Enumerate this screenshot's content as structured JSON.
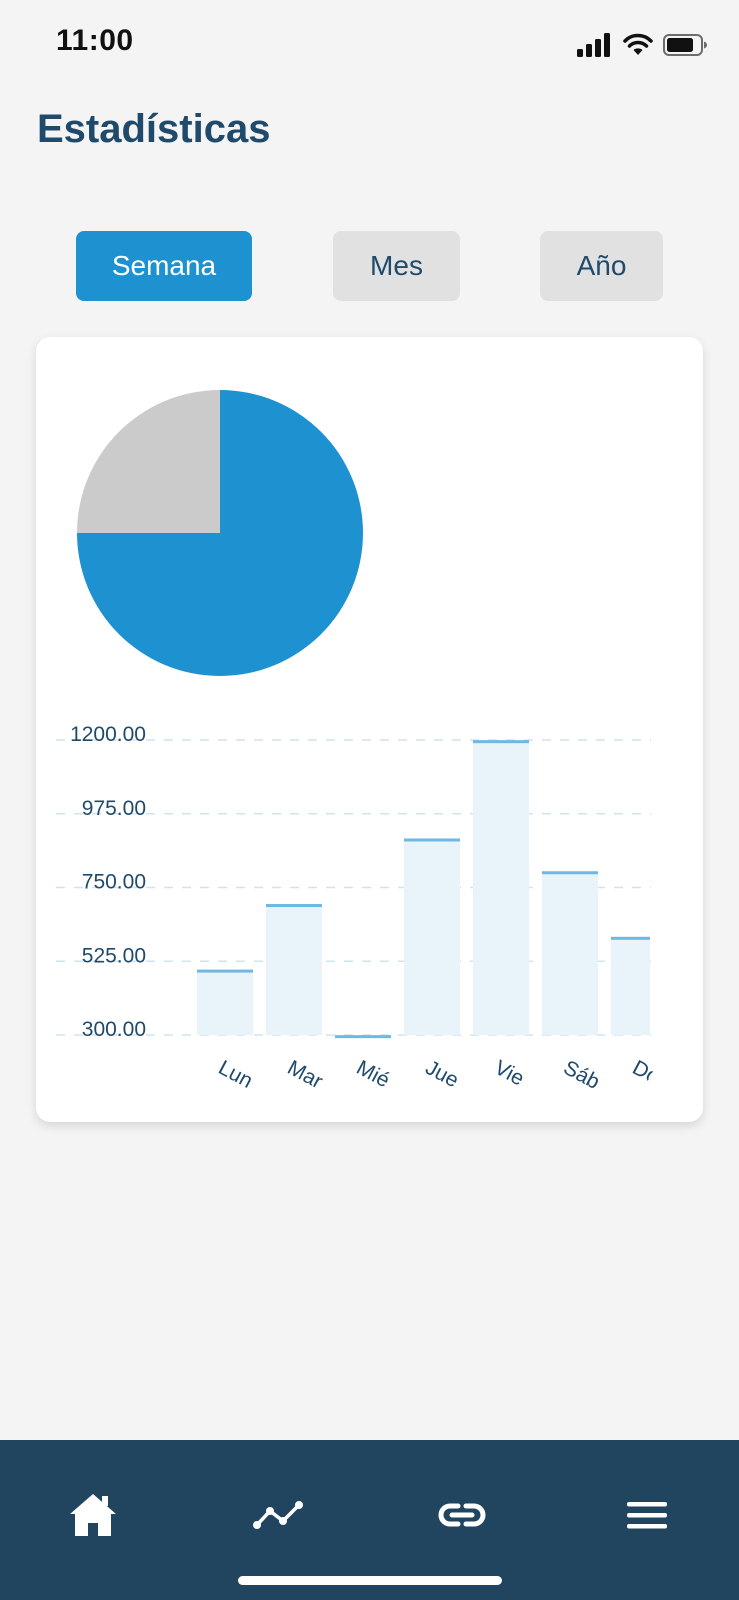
{
  "status_bar": {
    "time": "11:00",
    "icons": [
      "signal-icon",
      "wifi-icon",
      "battery-icon"
    ]
  },
  "header": {
    "title": "Estadísticas"
  },
  "tabs": [
    {
      "label": "Semana",
      "active": true
    },
    {
      "label": "Mes",
      "active": false
    },
    {
      "label": "Año",
      "active": false
    }
  ],
  "colors": {
    "accent": "#1e92d1",
    "title": "#1f4a6b",
    "tab_inactive": "#e1e1e1",
    "pie_secondary": "#cbcbcb",
    "bar_fill": "#e8f3fa",
    "bar_top": "#6fb8e2",
    "nav_background": "#22455f",
    "background": "#f4f4f4"
  },
  "chart_data": [
    {
      "type": "pie",
      "values": [
        75,
        25
      ],
      "colors": [
        "#1e92d1",
        "#cbcbcb"
      ]
    },
    {
      "type": "bar",
      "categories": [
        "Lun",
        "Mar",
        "Mié",
        "Jue",
        "Vie",
        "Sáb",
        "Dom"
      ],
      "values": [
        495,
        695,
        295,
        895,
        1195,
        795,
        595
      ],
      "ylim": [
        300,
        1200
      ],
      "yticks": [
        "1200.00",
        "975.00",
        "750.00",
        "525.00",
        "300.00"
      ],
      "ytick_values": [
        1200,
        975,
        750,
        525,
        300
      ],
      "grid": true
    }
  ],
  "bottom_nav": {
    "items": [
      {
        "name": "home-icon",
        "active": true
      },
      {
        "name": "chart-line-icon",
        "active": false
      },
      {
        "name": "link-icon",
        "active": false
      },
      {
        "name": "menu-icon",
        "active": false
      }
    ]
  }
}
